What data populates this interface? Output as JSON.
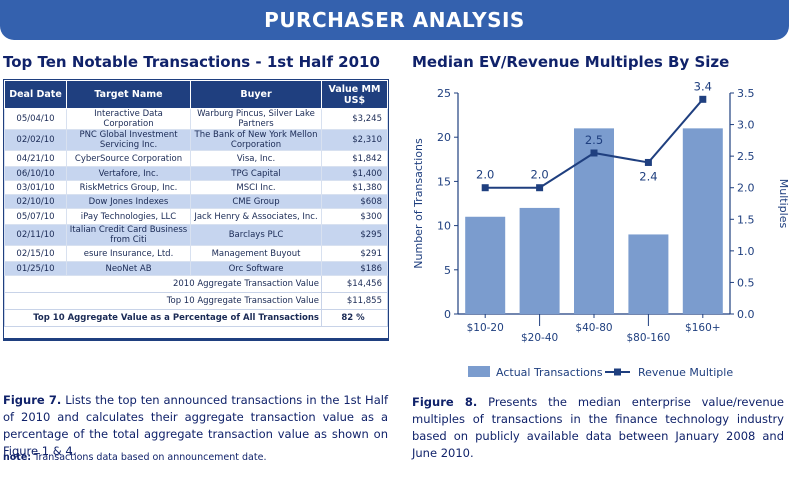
{
  "header": {
    "title": "PURCHASER ANALYSIS"
  },
  "left": {
    "title": "Top Ten Notable Transactions - 1st Half 2010",
    "table": {
      "headers": [
        "Deal Date",
        "Target Name",
        "Buyer",
        "Value MM US$"
      ],
      "rows": [
        {
          "date": "05/04/10",
          "target": "Interactive Data Corporation",
          "buyer": "Warburg Pincus, Silver Lake Partners",
          "value": "$3,245"
        },
        {
          "date": "02/02/10",
          "target": "PNC Global Investment Servicing Inc.",
          "buyer": "The Bank of New York Mellon Corporation",
          "value": "$2,310"
        },
        {
          "date": "04/21/10",
          "target": "CyberSource Corporation",
          "buyer": "Visa, Inc.",
          "value": "$1,842"
        },
        {
          "date": "06/10/10",
          "target": "Vertafore, Inc.",
          "buyer": "TPG Capital",
          "value": "$1,400"
        },
        {
          "date": "03/01/10",
          "target": "RiskMetrics Group, Inc.",
          "buyer": "MSCI Inc.",
          "value": "$1,380"
        },
        {
          "date": "02/10/10",
          "target": "Dow Jones Indexes",
          "buyer": "CME Group",
          "value": "$608"
        },
        {
          "date": "05/07/10",
          "target": "iPay Technologies, LLC",
          "buyer": "Jack Henry & Associates, Inc.",
          "value": "$300"
        },
        {
          "date": "02/11/10",
          "target": "Italian Credit Card Business from Citi",
          "buyer": "Barclays PLC",
          "value": "$295"
        },
        {
          "date": "02/15/10",
          "target": "esure Insurance, Ltd.",
          "buyer": "Management Buyout",
          "value": "$291"
        },
        {
          "date": "01/25/10",
          "target": "NeoNet AB",
          "buyer": "Orc Software",
          "value": "$186"
        }
      ],
      "summary": [
        {
          "label": "2010 Aggregate Transaction Value",
          "value": "$14,456"
        },
        {
          "label": "Top 10 Aggregate Transaction Value",
          "value": "$11,855"
        },
        {
          "label": "Top 10 Aggregate Value as a Percentage of All Transactions",
          "value": "82 %"
        }
      ]
    },
    "caption": {
      "lead": "Figure 7.",
      "text": " Lists the top ten announced transactions in the 1st Half of 2010 and calculates their aggregate transaction value as a percentage of the total aggregate transaction value as shown on Figure 1 & 4."
    },
    "note": {
      "lead": "note:",
      "text": " Transactions data based on announcement date."
    }
  },
  "right": {
    "title": "Median EV/Revenue Multiples By Size",
    "caption": {
      "lead": "Figure 8.",
      "text": " Presents the median enterprise value/revenue multiples of transactions in the finance technology industry based on publicly available data between January 2008 and June 2010."
    }
  },
  "chart_data": {
    "type": "bar",
    "title": "Median EV/Revenue Multiples By Size",
    "categories": [
      "$10-20",
      "$20-40",
      "$40-80",
      "$80-160",
      "$160+"
    ],
    "series": [
      {
        "name": "Actual Transactions",
        "type": "bar",
        "axis": "left",
        "values": [
          11,
          12,
          21,
          9,
          21
        ]
      },
      {
        "name": "Revenue Multiple",
        "type": "line",
        "axis": "right",
        "values": [
          2.0,
          2.0,
          2.55,
          2.4,
          3.4
        ],
        "labels": [
          "2.0",
          "2.0",
          "2.5",
          "2.4",
          "3.4"
        ]
      }
    ],
    "ylabel": "Number of Transactions",
    "y2label": "Multiples",
    "ylim": [
      0,
      25
    ],
    "yticks": [
      "0",
      "5",
      "10",
      "15",
      "20",
      "25"
    ],
    "y2lim": [
      0,
      3.5
    ],
    "y2ticks": [
      "0.0",
      "0.5",
      "1.0",
      "1.5",
      "2.0",
      "2.5",
      "3.0",
      "3.5"
    ],
    "legend": "bottom",
    "colors": {
      "bar": "#7b9cce",
      "line": "#1f3f7f",
      "axis": "#1f3f7f"
    }
  }
}
